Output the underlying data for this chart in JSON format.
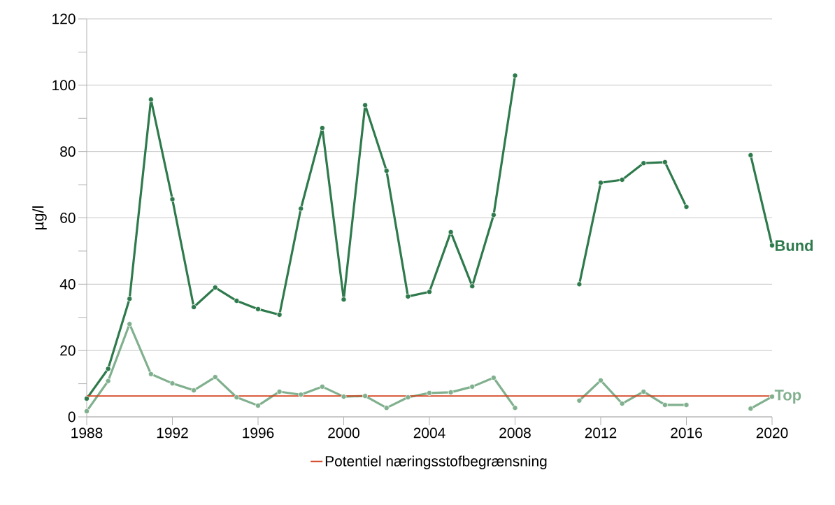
{
  "chart_data": {
    "type": "line",
    "ylabel": "µg/l",
    "x": [
      1988,
      1989,
      1990,
      1991,
      1992,
      1993,
      1994,
      1995,
      1996,
      1997,
      1998,
      1999,
      2000,
      2001,
      2002,
      2003,
      2004,
      2005,
      2006,
      2007,
      2008,
      2009,
      2010,
      2011,
      2012,
      2013,
      2014,
      2015,
      2016,
      2017,
      2018,
      2019,
      2020
    ],
    "series": [
      {
        "name": "Bund",
        "color": "#2e7a4c",
        "values": [
          5.5,
          14.5,
          35.6,
          95.7,
          65.6,
          33.1,
          39,
          35,
          32.5,
          30.8,
          62.8,
          87.1,
          35.4,
          94,
          74.2,
          36.3,
          37.7,
          55.7,
          39.4,
          60.9,
          102.9,
          null,
          null,
          40,
          70.6,
          71.5,
          76.5,
          76.8,
          63.3,
          null,
          null,
          78.9,
          51.7
        ]
      },
      {
        "name": "Top",
        "color": "#80b08e",
        "values": [
          1.7,
          10.8,
          28,
          12.9,
          10.1,
          8,
          12,
          5.9,
          3.4,
          7.6,
          6.7,
          9.1,
          6.1,
          6.3,
          2.7,
          5.9,
          7.2,
          7.4,
          9.1,
          11.8,
          2.7,
          null,
          null,
          4.9,
          11,
          4,
          7.6,
          3.6,
          3.6,
          null,
          null,
          2.5,
          6.1
        ]
      }
    ],
    "ref_lines": [
      {
        "axis": "y",
        "value": 6.3,
        "label": "Potentiel næringsstofbegrænsning",
        "color": "#d2411e"
      }
    ],
    "xlim": [
      1988,
      2020
    ],
    "xticks": [
      1988,
      1992,
      1996,
      2000,
      2004,
      2008,
      2012,
      2016,
      2020
    ],
    "ylim": [
      0,
      120
    ],
    "yticks": [
      0,
      {
        "value": 10,
        "label": null
      },
      20,
      {
        "value": 30,
        "label": null
      },
      40,
      {
        "value": 50,
        "label": null
      },
      60,
      {
        "value": 70,
        "label": null
      },
      80,
      {
        "value": 90,
        "label": null
      },
      100,
      {
        "value": 110,
        "label": null
      },
      120
    ],
    "grid": "y",
    "legend": "bottom",
    "marker": "circle",
    "line_style": "solid"
  }
}
